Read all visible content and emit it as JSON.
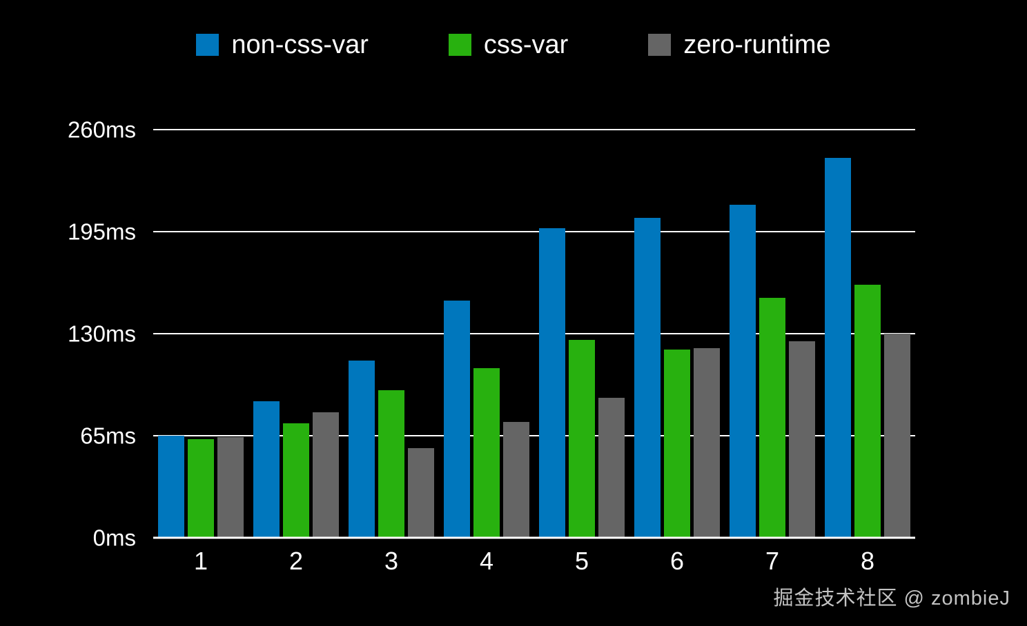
{
  "watermark": "掘金技术社区 @ zombieJ",
  "chart_data": {
    "type": "bar",
    "categories": [
      "1",
      "2",
      "3",
      "4",
      "5",
      "6",
      "7",
      "8"
    ],
    "series": [
      {
        "name": "non-css-var",
        "color": "#0077bd",
        "values": [
          65,
          87,
          113,
          151,
          197,
          204,
          212,
          242
        ]
      },
      {
        "name": "css-var",
        "color": "#28b10f",
        "values": [
          63,
          73,
          94,
          108,
          126,
          120,
          153,
          161
        ]
      },
      {
        "name": "zero-runtime",
        "color": "#656565",
        "values": [
          64,
          80,
          57,
          74,
          89,
          121,
          125,
          130
        ]
      }
    ],
    "unit": "ms",
    "ylim": [
      0,
      260
    ],
    "ytick_values": [
      0,
      65,
      130,
      195,
      260
    ],
    "ytick_labels": [
      "0ms",
      "65ms",
      "130ms",
      "195ms",
      "260ms"
    ],
    "grid": true,
    "legend_position": "top",
    "background_color": "#000000",
    "axis_text_color": "#ffffff",
    "gridline_color": "#ffffff"
  }
}
